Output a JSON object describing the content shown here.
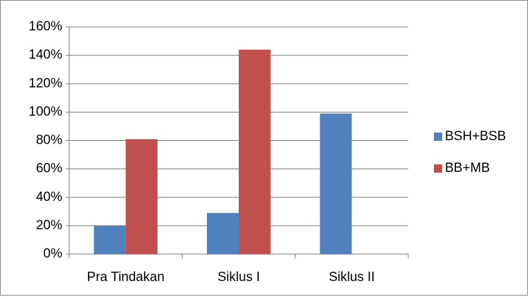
{
  "chart_data": {
    "type": "bar",
    "categories": [
      "Pra Tindakan",
      "Siklus I",
      "Siklus II"
    ],
    "series": [
      {
        "name": "BSH+BSB",
        "color": "#4f81bd",
        "values": [
          20,
          29,
          99
        ]
      },
      {
        "name": "BB+MB",
        "color": "#c0504d",
        "values": [
          81,
          144,
          0
        ]
      }
    ],
    "ylim": [
      0,
      160
    ],
    "yticks": [
      {
        "value": 0,
        "label": "0%"
      },
      {
        "value": 20,
        "label": "20%"
      },
      {
        "value": 40,
        "label": "40%"
      },
      {
        "value": 60,
        "label": "60%"
      },
      {
        "value": 80,
        "label": "80%"
      },
      {
        "value": 100,
        "label": "100%"
      },
      {
        "value": 120,
        "label": "120%"
      },
      {
        "value": 140,
        "label": "140%"
      },
      {
        "value": 160,
        "label": "160%"
      }
    ],
    "grid": true,
    "legend": "right"
  }
}
